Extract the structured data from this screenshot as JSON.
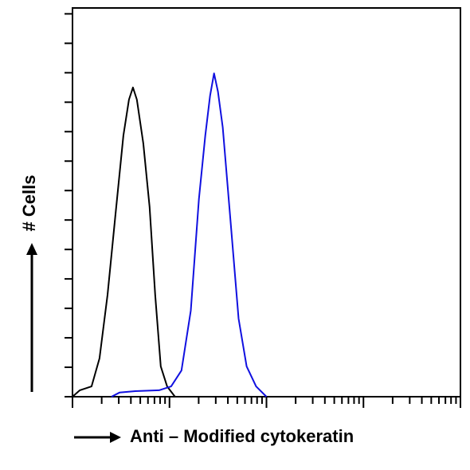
{
  "chart_data": {
    "type": "line",
    "xlabel": "Anti – Modified cytokeratin",
    "ylabel": "# Cells",
    "xscale": "log",
    "xlim": [
      1,
      10000
    ],
    "ylim": [
      0,
      132
    ],
    "xticks": [
      1,
      2,
      3,
      4,
      5,
      6,
      7,
      8,
      9,
      10,
      20,
      30,
      40,
      50,
      60,
      70,
      80,
      90,
      100,
      200,
      300,
      400,
      500,
      600,
      700,
      800,
      900,
      1000,
      2000,
      3000,
      4000,
      5000,
      6000,
      7000,
      8000,
      9000,
      10000
    ],
    "yticks": [
      0,
      10,
      20,
      30,
      40,
      50,
      60,
      70,
      80,
      90,
      100,
      110,
      120,
      130
    ],
    "grid": false,
    "series": [
      {
        "color": "#000000",
        "x": [
          1,
          1.19,
          1.57,
          1.9,
          2.3,
          2.77,
          3.35,
          3.82,
          4.2,
          4.61,
          5.37,
          6.24,
          7.12,
          8.13,
          9.45,
          11.4
        ],
        "values": [
          0,
          2.2,
          3.5,
          13,
          34.6,
          61.7,
          88.7,
          100.9,
          105,
          100.9,
          86,
          64.4,
          34.6,
          10.3,
          3.5,
          0
        ]
      },
      {
        "color": "#1010e0",
        "x": [
          2.52,
          3.05,
          4.44,
          7.82,
          10.4,
          13.3,
          16.6,
          20.1,
          23.4,
          26.2,
          28.8,
          31.6,
          35.4,
          42.8,
          51.6,
          62.4,
          78.2,
          100
        ],
        "values": [
          0,
          1.4,
          1.9,
          2.2,
          3.5,
          8.9,
          29.2,
          67.1,
          88.7,
          102.2,
          109.8,
          103.6,
          91.5,
          59,
          26.5,
          10.3,
          3.5,
          0
        ]
      }
    ]
  }
}
